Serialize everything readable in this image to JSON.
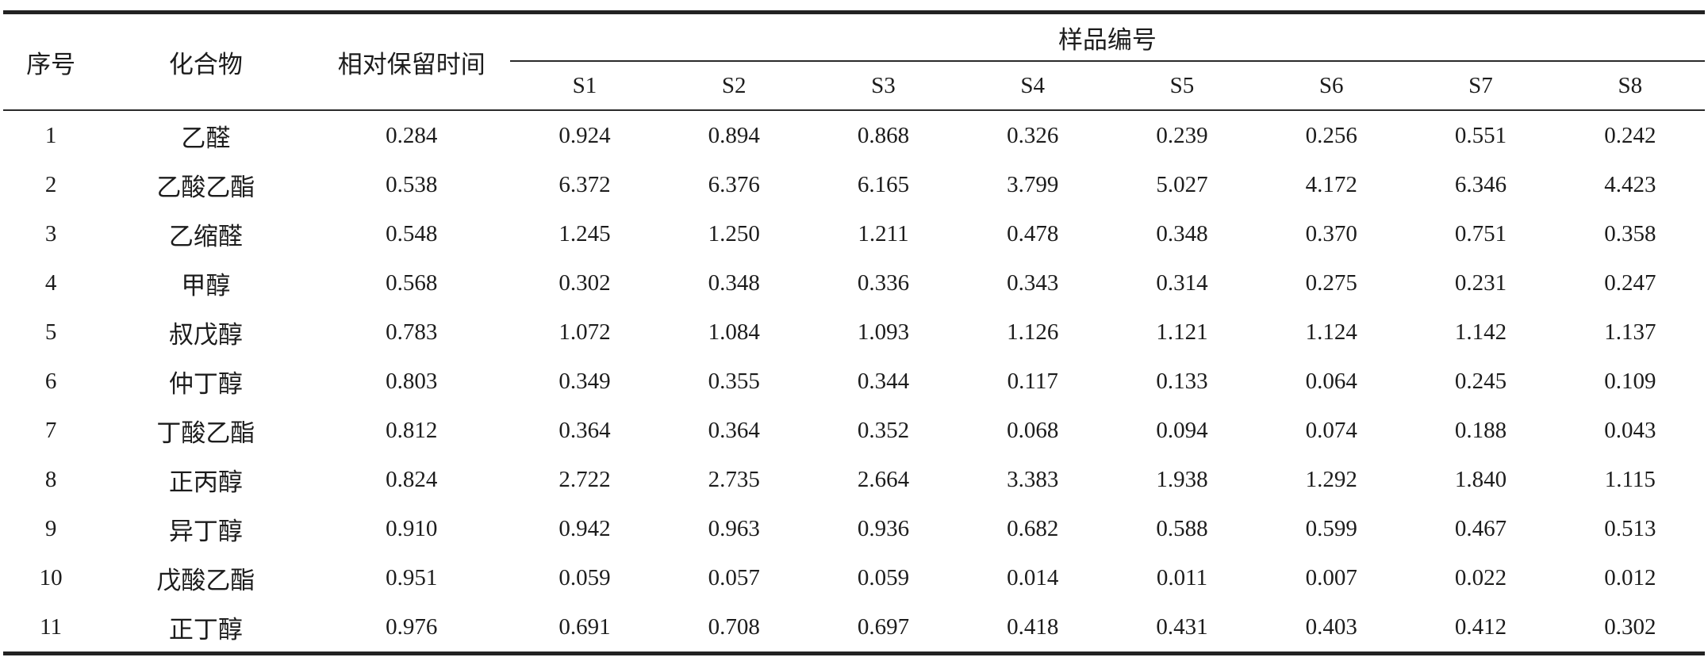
{
  "table": {
    "header": {
      "index_label": "序号",
      "compound_label": "化合物",
      "retention_label": "相对保留时间",
      "sample_group_label": "样品编号",
      "sample_columns": [
        "S1",
        "S2",
        "S3",
        "S4",
        "S5",
        "S6",
        "S7",
        "S8"
      ]
    },
    "rows": [
      {
        "index": "1",
        "compound": "乙醛",
        "retention_time": "0.284",
        "sample_values": [
          "0.924",
          "0.894",
          "0.868",
          "0.326",
          "0.239",
          "0.256",
          "0.551",
          "0.242"
        ]
      },
      {
        "index": "2",
        "compound": "乙酸乙酯",
        "retention_time": "0.538",
        "sample_values": [
          "6.372",
          "6.376",
          "6.165",
          "3.799",
          "5.027",
          "4.172",
          "6.346",
          "4.423"
        ]
      },
      {
        "index": "3",
        "compound": "乙缩醛",
        "retention_time": "0.548",
        "sample_values": [
          "1.245",
          "1.250",
          "1.211",
          "0.478",
          "0.348",
          "0.370",
          "0.751",
          "0.358"
        ]
      },
      {
        "index": "4",
        "compound": "甲醇",
        "retention_time": "0.568",
        "sample_values": [
          "0.302",
          "0.348",
          "0.336",
          "0.343",
          "0.314",
          "0.275",
          "0.231",
          "0.247"
        ]
      },
      {
        "index": "5",
        "compound": "叔戊醇",
        "retention_time": "0.783",
        "sample_values": [
          "1.072",
          "1.084",
          "1.093",
          "1.126",
          "1.121",
          "1.124",
          "1.142",
          "1.137"
        ]
      },
      {
        "index": "6",
        "compound": "仲丁醇",
        "retention_time": "0.803",
        "sample_values": [
          "0.349",
          "0.355",
          "0.344",
          "0.117",
          "0.133",
          "0.064",
          "0.245",
          "0.109"
        ]
      },
      {
        "index": "7",
        "compound": "丁酸乙酯",
        "retention_time": "0.812",
        "sample_values": [
          "0.364",
          "0.364",
          "0.352",
          "0.068",
          "0.094",
          "0.074",
          "0.188",
          "0.043"
        ]
      },
      {
        "index": "8",
        "compound": "正丙醇",
        "retention_time": "0.824",
        "sample_values": [
          "2.722",
          "2.735",
          "2.664",
          "3.383",
          "1.938",
          "1.292",
          "1.840",
          "1.115"
        ]
      },
      {
        "index": "9",
        "compound": "异丁醇",
        "retention_time": "0.910",
        "sample_values": [
          "0.942",
          "0.963",
          "0.936",
          "0.682",
          "0.588",
          "0.599",
          "0.467",
          "0.513"
        ]
      },
      {
        "index": "10",
        "compound": "戊酸乙酯",
        "retention_time": "0.951",
        "sample_values": [
          "0.059",
          "0.057",
          "0.059",
          "0.014",
          "0.011",
          "0.007",
          "0.022",
          "0.012"
        ]
      },
      {
        "index": "11",
        "compound": "正丁醇",
        "retention_time": "0.976",
        "sample_values": [
          "0.691",
          "0.708",
          "0.697",
          "0.418",
          "0.431",
          "0.403",
          "0.412",
          "0.302"
        ]
      }
    ]
  },
  "colors": {
    "background": "#ffffff",
    "text": "#1c1c1c",
    "rule": "#222222"
  }
}
